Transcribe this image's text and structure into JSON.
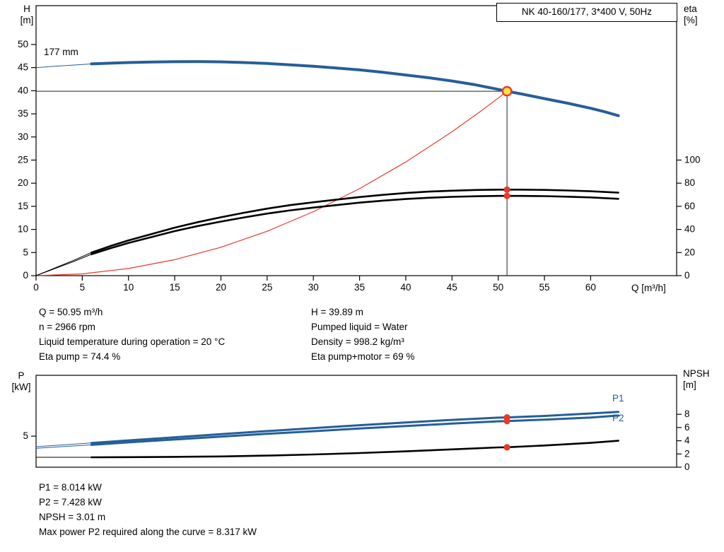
{
  "colors": {
    "blue": "#265e9a",
    "red": "#e8392b",
    "yellow": "#ffe33e",
    "black": "#000000"
  },
  "title_box": "NK 40-160/177, 3*400 V, 50Hz",
  "labels": {
    "h_axis_1": "H",
    "h_axis_2": "[m]",
    "eta_axis_1": "eta",
    "eta_axis_2": "[%]",
    "p_axis_1": "P",
    "p_axis_2": "[kW]",
    "npsh_axis_1": "NPSH",
    "npsh_axis_2": "[m]",
    "x_axis": "Q [m³/h]",
    "impeller": "177 mm",
    "p1": "P1",
    "p2": "P2"
  },
  "info_top": {
    "left": [
      "Q = 50.95 m³/h",
      "n = 2966 rpm",
      "Liquid temperature during operation = 20 °C",
      "Eta pump = 74.4 %"
    ],
    "right": [
      "H = 39.89 m",
      "Pumped liquid = Water",
      "Density = 998.2 kg/m³",
      "Eta pump+motor = 69 %"
    ]
  },
  "info_bottom": [
    "P1 = 8.014 kW",
    "P2 = 7.428 kW",
    "NPSH = 3.01 m",
    "Max power P2 required along the curve = 8.317 kW"
  ],
  "chart_data": [
    {
      "type": "line",
      "title": "NK 40-160/177, 3*400 V, 50Hz",
      "xlabel": "Q [m³/h]",
      "y_left_label": "H [m]",
      "y_right_label": "eta [%]",
      "annotations": [
        "177 mm"
      ],
      "xlim": [
        0,
        69.3
      ],
      "x_ticks": [
        0,
        5,
        10,
        15,
        20,
        25,
        30,
        35,
        40,
        45,
        50,
        55,
        60
      ],
      "y_left_lim": [
        0,
        58.4
      ],
      "y_left_ticks": [
        0,
        5,
        10,
        15,
        20,
        25,
        30,
        35,
        40,
        45,
        50
      ],
      "y_right_lim": [
        0,
        233.6
      ],
      "y_right_ticks": [
        0,
        20,
        40,
        60,
        80,
        100
      ],
      "duty_lines": {
        "q": 50.95,
        "h": 39.89
      },
      "series": [
        {
          "name": "system-curve",
          "axis": "left",
          "color_key": "red",
          "width": 1.2,
          "x": [
            0,
            5,
            10,
            15,
            20,
            25,
            30,
            35,
            40,
            45,
            48,
            50,
            50.95
          ],
          "y": [
            0,
            0.38,
            1.54,
            3.46,
            6.15,
            9.6,
            13.83,
            18.82,
            24.58,
            31.12,
            35.4,
            38.41,
            39.89
          ]
        },
        {
          "name": "eta-pump-motor",
          "axis": "right",
          "color_key": "black",
          "width": 2.6,
          "thin_until": 6,
          "x": [
            0,
            2,
            4,
            6,
            8,
            10,
            12.5,
            15,
            17.5,
            20,
            22.5,
            25,
            27.5,
            30,
            32.5,
            35,
            37.5,
            40,
            42.5,
            45,
            47.5,
            50,
            50.95,
            52.5,
            55,
            57.5,
            60,
            63
          ],
          "y": [
            0,
            6,
            12,
            18.5,
            23.6,
            28.3,
            33.4,
            38.5,
            42.9,
            46.8,
            50.4,
            53.7,
            56.5,
            58.9,
            61.0,
            63.2,
            64.9,
            66.3,
            67.4,
            68.2,
            68.7,
            69.0,
            69.0,
            69.0,
            68.8,
            68.3,
            67.7,
            66.5
          ]
        },
        {
          "name": "eta-pump",
          "axis": "right",
          "color_key": "black",
          "width": 2.6,
          "thin_until": 6,
          "x": [
            0,
            2,
            4,
            6,
            8,
            10,
            12.5,
            15,
            17.5,
            20,
            22.5,
            25,
            27.5,
            30,
            32.5,
            35,
            37.5,
            40,
            42.5,
            45,
            47.5,
            50,
            50.95,
            52.5,
            55,
            57.5,
            60,
            63
          ],
          "y": [
            0,
            6.5,
            13,
            20,
            25.5,
            30.5,
            36,
            41.5,
            46.3,
            50.5,
            54.4,
            58,
            61,
            63.5,
            65.8,
            68,
            69.9,
            71.5,
            72.7,
            73.5,
            74.1,
            74.4,
            74.4,
            74.4,
            74.2,
            73.7,
            73.0,
            71.8
          ]
        },
        {
          "name": "head-curve-177mm",
          "axis": "left",
          "color_key": "blue",
          "width": 4,
          "thin_until": 6,
          "x": [
            0,
            2,
            4,
            6,
            8,
            10,
            12.5,
            15,
            17.5,
            20,
            22.5,
            25,
            27.5,
            30,
            32.5,
            35,
            37.5,
            40,
            42.5,
            45,
            47.5,
            50,
            50.95,
            52.5,
            55,
            57.5,
            60,
            61.5,
            63
          ],
          "y": [
            45.0,
            45.3,
            45.55,
            45.8,
            45.95,
            46.1,
            46.2,
            46.28,
            46.3,
            46.25,
            46.1,
            45.9,
            45.6,
            45.3,
            44.9,
            44.5,
            44.0,
            43.4,
            42.8,
            42.1,
            41.3,
            40.3,
            39.89,
            39.3,
            38.3,
            37.3,
            36.2,
            35.45,
            34.6
          ]
        }
      ],
      "markers": [
        {
          "axis": "left",
          "q": 50.95,
          "v": 39.89,
          "style": "duty",
          "name": "duty-point"
        },
        {
          "axis": "right",
          "q": 50.95,
          "v": 74.4,
          "style": "dot",
          "name": "eta-pump-point"
        },
        {
          "axis": "right",
          "q": 50.95,
          "v": 69.0,
          "style": "dot",
          "name": "eta-pump-motor-point"
        }
      ]
    },
    {
      "type": "line",
      "title": "",
      "xlabel": "",
      "y_left_label": "P [kW]",
      "y_right_label": "NPSH [m]",
      "xlim": [
        0,
        69.3
      ],
      "x_ticks": [],
      "y_left_lim": [
        0,
        14.8
      ],
      "y_left_ticks": [
        5
      ],
      "y_right_lim": [
        0,
        13.9
      ],
      "y_right_ticks": [
        0,
        2,
        4,
        6,
        8
      ],
      "series": [
        {
          "name": "npsh-curve",
          "axis": "right",
          "color_key": "black",
          "width": 2.6,
          "thin_until": 6,
          "x": [
            0,
            6,
            10,
            15,
            20,
            25,
            30,
            35,
            40,
            45,
            50,
            50.95,
            55,
            60,
            63
          ],
          "y": [
            1.5,
            1.5,
            1.52,
            1.56,
            1.63,
            1.75,
            1.92,
            2.14,
            2.4,
            2.69,
            2.99,
            3.01,
            3.28,
            3.68,
            4.0
          ]
        },
        {
          "name": "p2-curve",
          "axis": "left",
          "color_key": "blue",
          "width": 3,
          "thin_until": 6,
          "x": [
            0,
            3,
            6,
            10,
            15,
            20,
            25,
            30,
            35,
            40,
            45,
            50,
            50.95,
            55,
            60,
            63
          ],
          "y": [
            3.05,
            3.33,
            3.6,
            4.0,
            4.46,
            4.92,
            5.37,
            5.8,
            6.23,
            6.64,
            7.03,
            7.39,
            7.428,
            7.66,
            8.0,
            8.317
          ]
        },
        {
          "name": "p1-curve",
          "axis": "left",
          "color_key": "blue",
          "width": 3,
          "thin_until": 6,
          "x": [
            0,
            3,
            6,
            10,
            15,
            20,
            25,
            30,
            35,
            40,
            45,
            50,
            50.95,
            55,
            60,
            63
          ],
          "y": [
            3.3,
            3.6,
            3.9,
            4.32,
            4.82,
            5.32,
            5.82,
            6.3,
            6.76,
            7.2,
            7.62,
            7.98,
            8.014,
            8.25,
            8.65,
            8.9
          ]
        }
      ],
      "markers": [
        {
          "axis": "left",
          "q": 50.95,
          "v": 8.014,
          "style": "dot",
          "name": "p1-point"
        },
        {
          "axis": "left",
          "q": 50.95,
          "v": 7.428,
          "style": "dot",
          "name": "p2-point"
        },
        {
          "axis": "right",
          "q": 50.95,
          "v": 3.01,
          "style": "dot",
          "name": "npsh-point"
        }
      ]
    }
  ]
}
